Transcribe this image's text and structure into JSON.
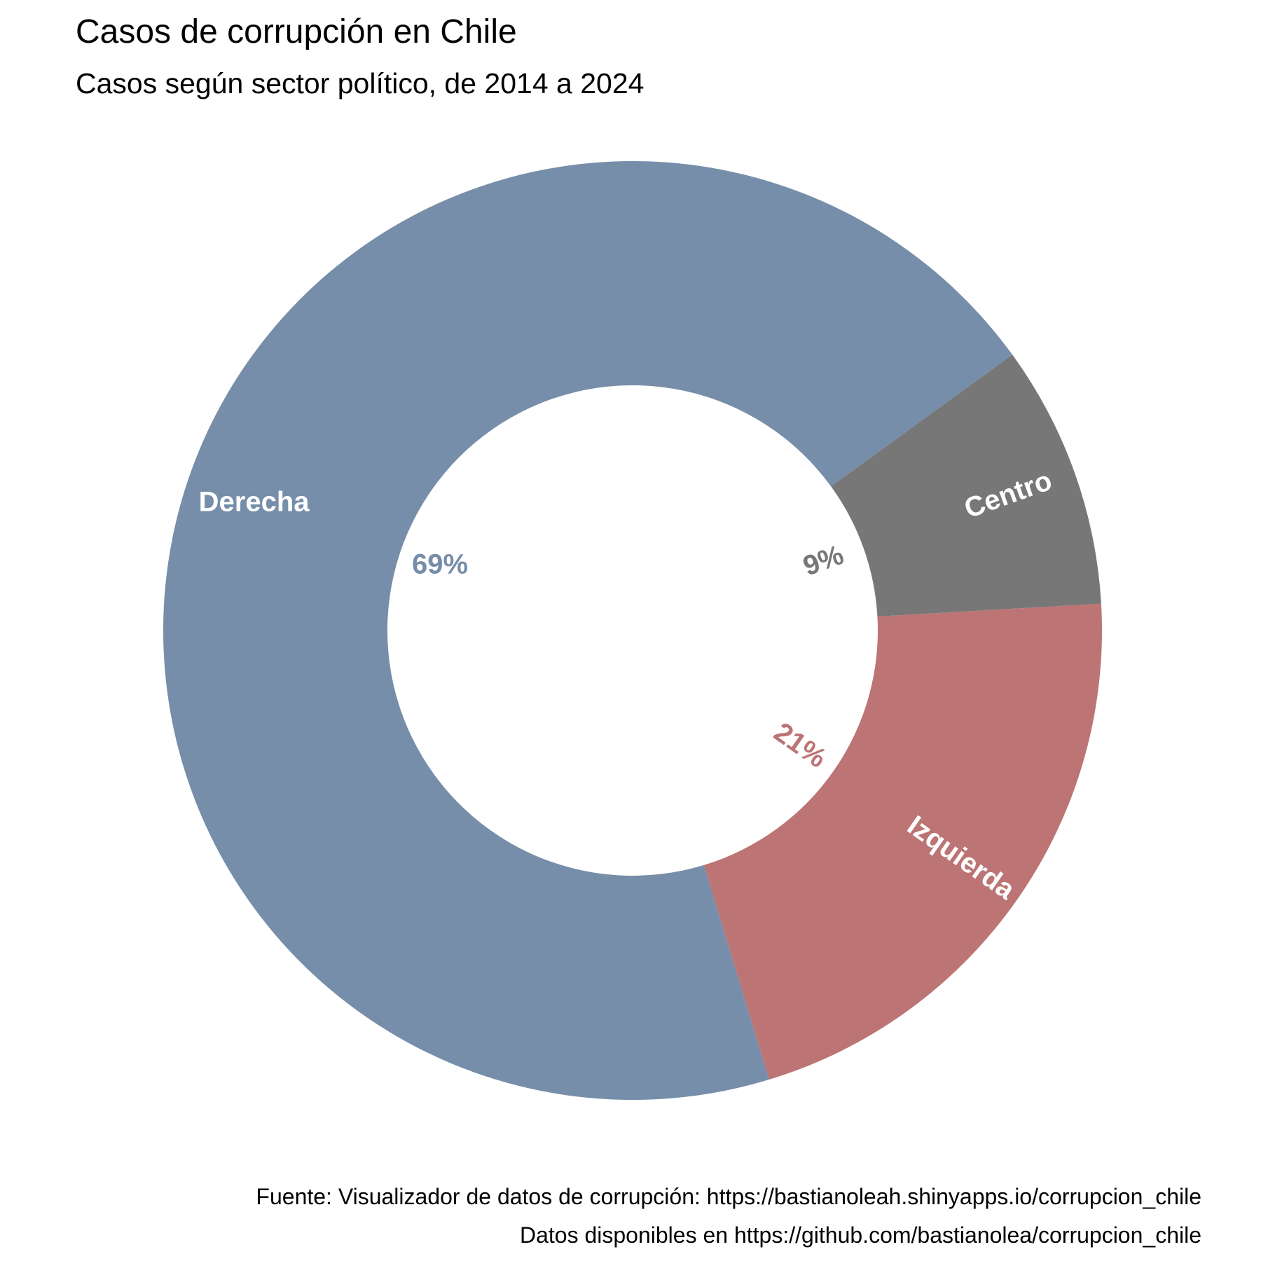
{
  "chart_data": {
    "type": "pie",
    "variant": "donut",
    "title": "Casos de corrupción en Chile",
    "subtitle": "Casos según sector político, de 2014 a 2024",
    "categories": [
      "Derecha",
      "Centro",
      "Izquierda"
    ],
    "values": [
      69,
      9,
      21
    ],
    "value_labels": [
      "69%",
      "9%",
      "21%"
    ],
    "colors": [
      "#768ea9",
      "#777777",
      "#bc7474"
    ],
    "legend": "none",
    "caption": [
      "Fuente: Visualizador de datos de corrupción: https://bastianoleah.shinyapps.io/corrupcion_chile",
      "Datos disponibles en https://github.com/bastianolea/corrupcion_chile"
    ]
  }
}
